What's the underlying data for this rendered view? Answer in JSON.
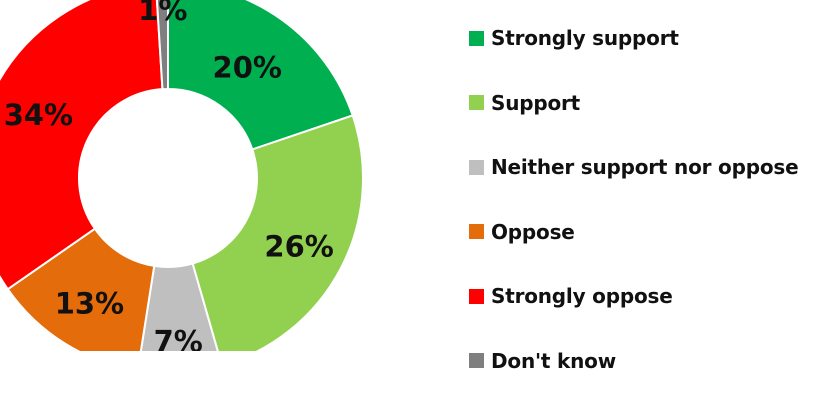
{
  "chart_data": {
    "type": "pie",
    "title": "",
    "categories": [
      "Strongly support",
      "Support",
      "Neither support nor oppose",
      "Oppose",
      "Strongly oppose",
      "Don't know"
    ],
    "values": [
      20,
      26,
      7,
      13,
      34,
      1
    ],
    "labels": [
      "20%",
      "26%",
      "7%",
      "13%",
      "34%",
      "1%"
    ],
    "colors": [
      "#00B050",
      "#92D050",
      "#BFBFBF",
      "#E46C0A",
      "#FF0000",
      "#7F7F7F"
    ],
    "legend_position": "right"
  }
}
